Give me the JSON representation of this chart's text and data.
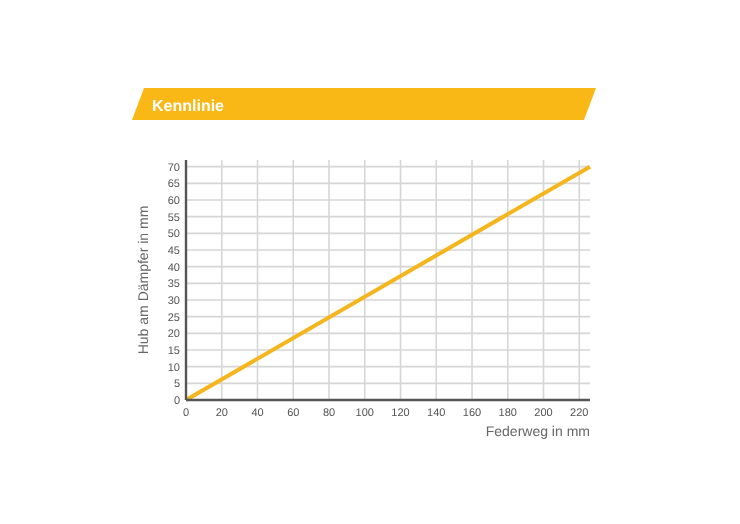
{
  "chart_data": {
    "type": "line",
    "title": "Kennlinie",
    "xlabel": "Federweg in mm",
    "ylabel": "Hub am Dämpfer in mm",
    "x": [
      0,
      226
    ],
    "series": [
      {
        "color": "#f5b51c",
        "values": [
          0,
          70
        ]
      }
    ],
    "xlim": [
      0,
      226
    ],
    "xticks": [
      0,
      20,
      40,
      60,
      80,
      100,
      120,
      140,
      160,
      180,
      200,
      220
    ],
    "ylim": [
      0,
      72
    ],
    "yticks": [
      0,
      5,
      10,
      15,
      20,
      25,
      30,
      35,
      40,
      45,
      50,
      55,
      60,
      65,
      70
    ],
    "grid": true,
    "marker": "none",
    "line_style": "solid"
  }
}
